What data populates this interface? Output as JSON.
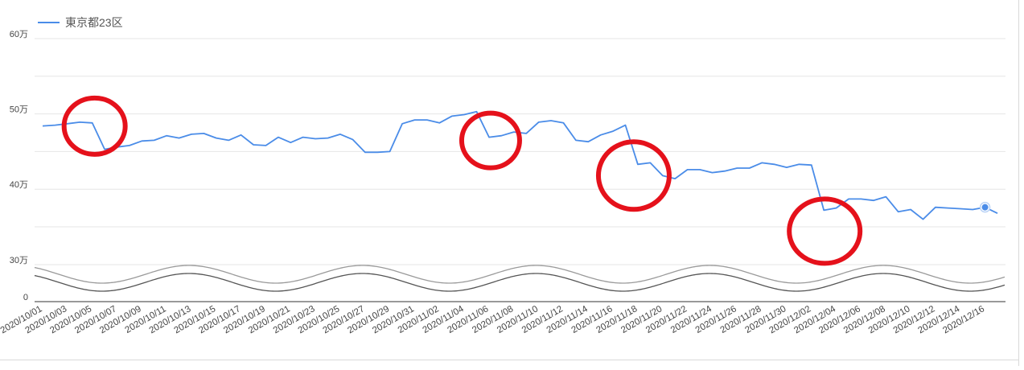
{
  "chart_data": {
    "type": "line",
    "title": "",
    "xlabel": "",
    "ylabel": "",
    "legend_position": "top-left",
    "grid": true,
    "axis_break": "between 0 and 30万",
    "series": [
      {
        "name": "東京都23区",
        "color": "#4a8ce8",
        "values": [
          48.4,
          48.5,
          48.7,
          48.9,
          48.8,
          45.3,
          45.6,
          45.8,
          46.4,
          46.5,
          47.1,
          46.8,
          47.3,
          47.4,
          46.8,
          46.5,
          47.2,
          45.9,
          45.8,
          46.9,
          46.2,
          46.9,
          46.7,
          46.8,
          47.3,
          46.6,
          44.9,
          44.9,
          45.0,
          48.7,
          49.2,
          49.2,
          48.8,
          49.7,
          49.9,
          50.3,
          46.9,
          47.1,
          47.6,
          47.4,
          48.9,
          49.1,
          48.8,
          46.5,
          46.3,
          47.2,
          47.7,
          48.5,
          43.3,
          43.5,
          41.8,
          41.4,
          42.6,
          42.6,
          42.2,
          42.4,
          42.8,
          42.8,
          43.5,
          43.3,
          42.9,
          43.3,
          43.2,
          37.2,
          37.5,
          38.7,
          38.7,
          38.5,
          39.0,
          37.0,
          37.3,
          36.0,
          37.6,
          37.5,
          37.4,
          37.3,
          37.6,
          36.8
        ]
      }
    ],
    "x_tick_labels": [
      "2020/10/01",
      "2020/10/03",
      "2020/10/05",
      "2020/10/07",
      "2020/10/09",
      "2020/10/11",
      "2020/10/13",
      "2020/10/15",
      "2020/10/17",
      "2020/10/19",
      "2020/10/21",
      "2020/10/23",
      "2020/10/25",
      "2020/10/27",
      "2020/10/29",
      "2020/10/31",
      "2020/11/02",
      "2020/11/04",
      "2020/11/06",
      "2020/11/08",
      "2020/11/10",
      "2020/11/12",
      "2020/11/14",
      "2020/11/16",
      "2020/11/18",
      "2020/11/20",
      "2020/11/22",
      "2020/11/24",
      "2020/11/26",
      "2020/11/28",
      "2020/11/30",
      "2020/12/02",
      "2020/12/04",
      "2020/12/06",
      "2020/12/08",
      "2020/12/10",
      "2020/12/12",
      "2020/12/14",
      "2020/12/16"
    ],
    "y_ticks": [
      {
        "value": 60,
        "label": "60万"
      },
      {
        "value": 50,
        "label": "50万"
      },
      {
        "value": 40,
        "label": "40万"
      },
      {
        "value": 30,
        "label": "30万"
      },
      {
        "value": 0,
        "label": "0"
      }
    ],
    "ylim": [
      35,
      60
    ],
    "highlight_circles": {
      "color": "#e5111b",
      "at_point_index": [
        4,
        36,
        48,
        63
      ]
    },
    "hover_marker_index": 76
  }
}
